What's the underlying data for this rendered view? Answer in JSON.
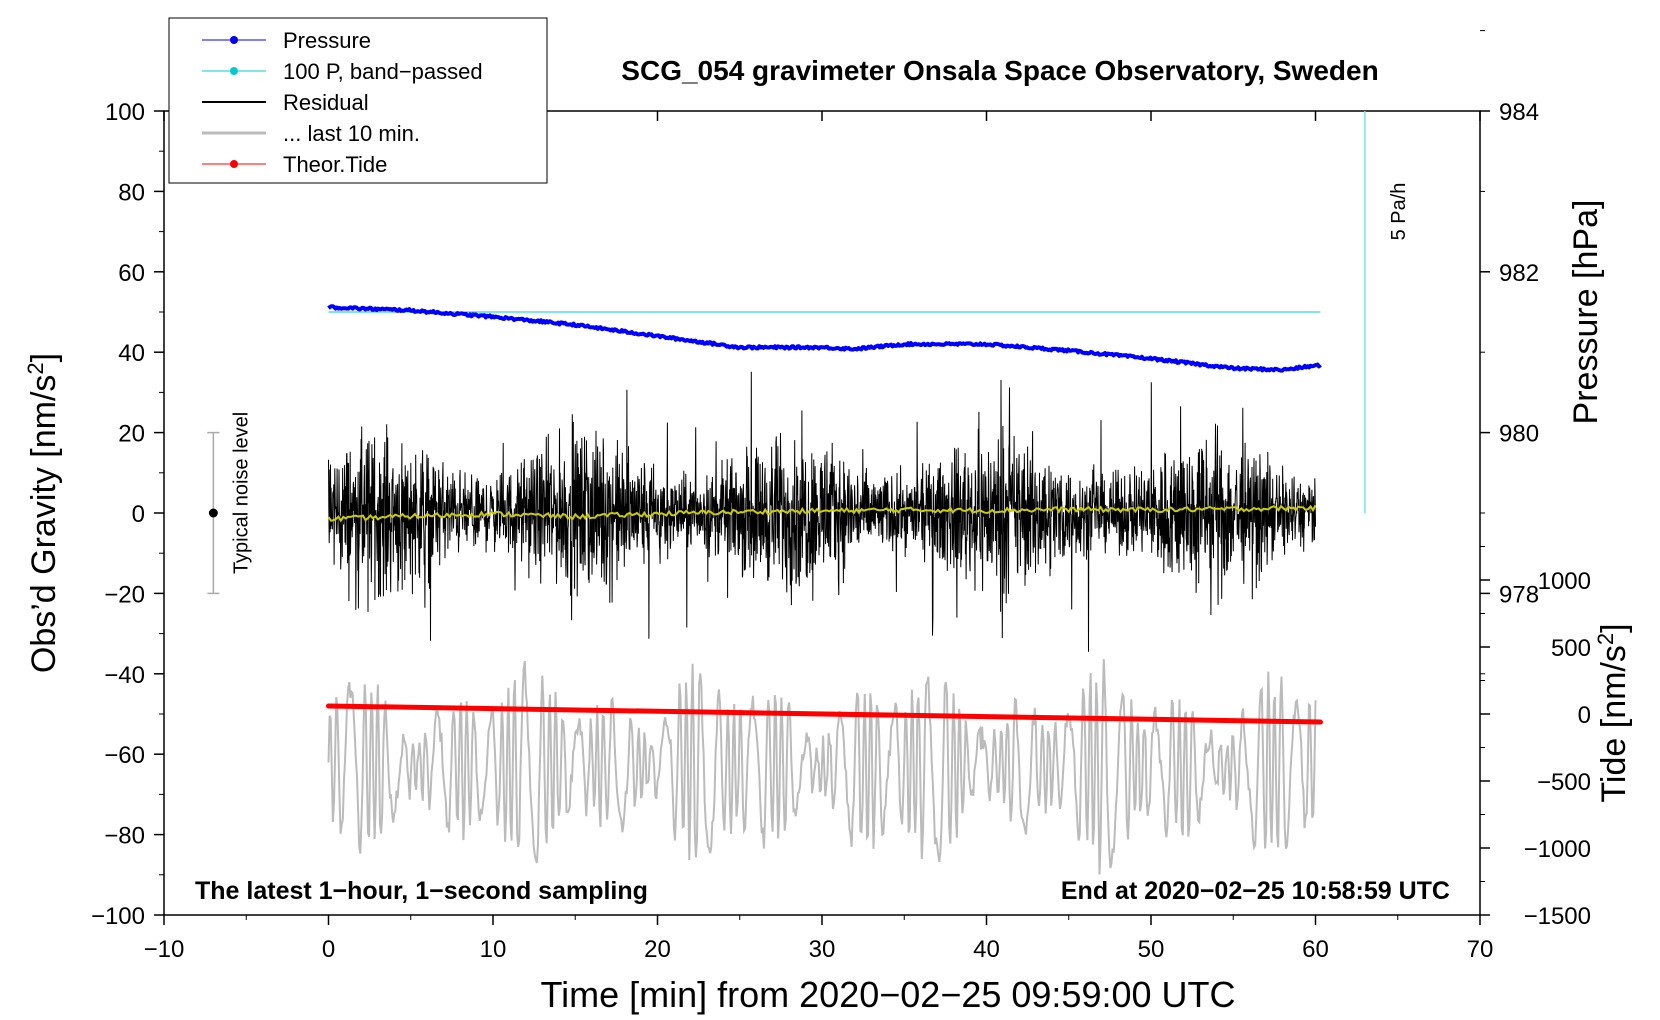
{
  "chart_data": {
    "type": "line",
    "title": "SCG_054 gravimeter Onsala Space Observatory, Sweden",
    "xlabel": "Time [min] from 2020−02−25 09:59:00 UTC",
    "ylabel_left_prefix": "Obs’d Gravity [nm/s",
    "ylabel_right_top": "Pressure [hPa]",
    "ylabel_right_bottom_prefix": "Tide [nm/s",
    "superscript": "2",
    "label_suffix": "]",
    "xlim": [
      -10,
      70
    ],
    "ylim": [
      -100,
      100
    ],
    "x_ticks": [
      -10,
      0,
      10,
      20,
      30,
      40,
      50,
      60,
      70
    ],
    "x_tick_labels": [
      "−10",
      "0",
      "10",
      "20",
      "30",
      "40",
      "50",
      "60",
      "70"
    ],
    "y_ticks": [
      -100,
      -80,
      -60,
      -40,
      -20,
      0,
      20,
      40,
      60,
      80,
      100
    ],
    "y_tick_labels": [
      "−100",
      "−80",
      "−60",
      "−40",
      "−20",
      "0",
      "20",
      "40",
      "60",
      "80",
      "100"
    ],
    "pressure_axis": {
      "ticks": [
        978,
        980,
        982,
        984
      ],
      "tick_labels": [
        "978",
        "980",
        "982",
        "984"
      ],
      "ref_hpa": 982,
      "ref_gravity": 60,
      "gravity_per_hpa": 20
    },
    "tide_axis": {
      "ticks": [
        -1500,
        -1000,
        -500,
        0,
        500,
        1000
      ],
      "tick_labels": [
        "−1500",
        "−1000",
        "−500",
        "0",
        "500",
        "1000"
      ],
      "ref_tide": 0,
      "ref_gravity": -50,
      "gravity_per_unit": 0.0333333
    },
    "series": [
      {
        "name": "Pressure",
        "color": "#0000ff",
        "style": "line+dots",
        "x": [
          0,
          5,
          10,
          15,
          20,
          25,
          30,
          32,
          35,
          40,
          45,
          50,
          55,
          58,
          60.3
        ],
        "y_hpa": [
          981.56,
          981.52,
          981.44,
          981.34,
          981.2,
          981.06,
          981.06,
          981.04,
          981.1,
          981.1,
          981.02,
          980.92,
          980.8,
          980.78,
          980.84
        ]
      },
      {
        "name": "100 P, band−passed",
        "color": "#00cccc",
        "style": "line",
        "x": [
          0,
          60.3
        ],
        "y": [
          50,
          50
        ]
      },
      {
        "name": "Residual",
        "color": "#000000",
        "style": "noise",
        "x_start": 0,
        "x_end": 60,
        "amplitude": 42
      },
      {
        "name": "... last 10 min.",
        "color": "#bbbbbb",
        "style": "oscillation",
        "x_start": 0,
        "x_end": 60,
        "amplitude": 25,
        "center": -63
      },
      {
        "name": "Theor.Tide",
        "color": "#ff0000",
        "style": "line+dots",
        "x": [
          0,
          60.3
        ],
        "y": [
          -48,
          -52
        ]
      },
      {
        "name": "Running mean",
        "color": "#cccc00",
        "style": "line",
        "x": [
          0,
          5,
          10,
          15,
          20,
          25,
          30,
          35,
          40,
          45,
          50,
          55,
          60
        ],
        "y": [
          -1.5,
          -0.8,
          -0.2,
          -0.9,
          -0.2,
          0.3,
          0.5,
          0.8,
          0.6,
          0.9,
          0.8,
          1.0,
          1.3
        ]
      }
    ],
    "noise_bar": {
      "x": -7,
      "y": 0,
      "low": -20,
      "high": 20,
      "label": "Typical noise level"
    },
    "rate_marker": {
      "x": 63,
      "y_top": 100,
      "y_bottom": 0,
      "label": "5 Pa/h",
      "color": "#80e0e0"
    },
    "annotation_left": "The latest 1−hour, 1−second sampling",
    "annotation_right": "End at 2020−02−25 10:58:59 UTC",
    "legend": [
      {
        "label": "Pressure",
        "color": "#0000ff",
        "marker": true,
        "width": 1
      },
      {
        "label": "100 P, band−passed",
        "color": "#00cccc",
        "marker": true,
        "width": 1
      },
      {
        "label": "Residual",
        "color": "#000000",
        "marker": false,
        "width": 2
      },
      {
        "label": "... last 10 min.",
        "color": "#bbbbbb",
        "marker": false,
        "width": 3
      },
      {
        "label": "Theor.Tide",
        "color": "#ff0000",
        "marker": true,
        "width": 1
      }
    ],
    "legend_position": "top-left"
  }
}
